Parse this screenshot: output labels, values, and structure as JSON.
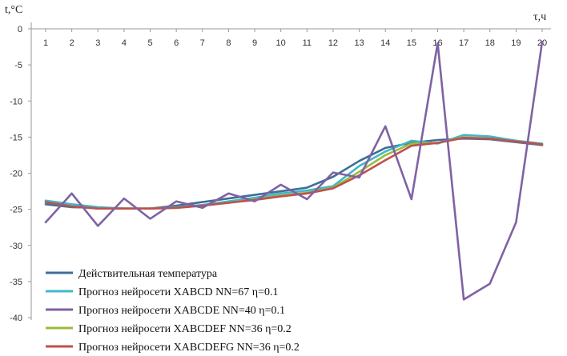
{
  "chart_data": {
    "type": "line",
    "title": "",
    "ylabel": "t,°C",
    "xlabel": "τ,ч",
    "x": [
      1,
      2,
      3,
      4,
      5,
      6,
      7,
      8,
      9,
      10,
      11,
      12,
      13,
      14,
      15,
      16,
      17,
      18,
      19,
      20
    ],
    "xlim": [
      1,
      20
    ],
    "ylim": [
      -40,
      0
    ],
    "yticks": [
      0,
      -5,
      -10,
      -15,
      -20,
      -25,
      -30,
      -35,
      -40
    ],
    "grid": false,
    "legend_position": "bottom-left",
    "series": [
      {
        "name": "Действительная температура",
        "color": "#3e6e97",
        "values": [
          -24.3,
          -24.7,
          -24.8,
          -24.9,
          -24.9,
          -24.5,
          -24.0,
          -23.5,
          -23.0,
          -22.5,
          -22.0,
          -20.5,
          -18.3,
          -16.5,
          -15.8,
          -15.4,
          -15.2,
          -15.3,
          -15.7,
          -16.1
        ]
      },
      {
        "name": "Прогноз нейросети  XABCD NN=67 η=0.1",
        "color": "#3fb8c8",
        "values": [
          -23.8,
          -24.3,
          -24.7,
          -24.9,
          -24.9,
          -24.7,
          -24.4,
          -23.9,
          -23.4,
          -22.8,
          -22.4,
          -21.8,
          -19.0,
          -17.0,
          -15.5,
          -15.9,
          -14.7,
          -14.9,
          -15.5,
          -15.9
        ]
      },
      {
        "name": "Прогноз нейросети  XABCDE NN=40 η=0.1",
        "color": "#7f62a4",
        "values": [
          -26.8,
          -22.8,
          -27.3,
          -23.5,
          -26.3,
          -23.9,
          -24.8,
          -22.8,
          -23.9,
          -21.6,
          -23.6,
          -19.9,
          -20.6,
          -13.5,
          -23.6,
          -2.0,
          -37.5,
          -35.3,
          -26.8,
          -1.8
        ]
      },
      {
        "name": "Прогноз нейросети  XABCDEF NN=36 η=0.2",
        "color": "#9bbb3b",
        "values": [
          -24.0,
          -24.6,
          -24.9,
          -24.9,
          -24.9,
          -24.8,
          -24.5,
          -24.1,
          -23.6,
          -23.1,
          -22.7,
          -22.0,
          -19.8,
          -17.5,
          -15.9,
          -15.8,
          -15.0,
          -15.2,
          -15.6,
          -16.0
        ]
      },
      {
        "name": "Прогноз нейросети  XABCDEFG NN=36 η=0.2",
        "color": "#c0504d",
        "values": [
          -24.0,
          -24.6,
          -24.9,
          -24.9,
          -24.9,
          -24.8,
          -24.5,
          -24.1,
          -23.7,
          -23.2,
          -22.8,
          -22.1,
          -20.3,
          -18.2,
          -16.2,
          -15.8,
          -15.1,
          -15.2,
          -15.6,
          -16.0
        ]
      }
    ]
  }
}
